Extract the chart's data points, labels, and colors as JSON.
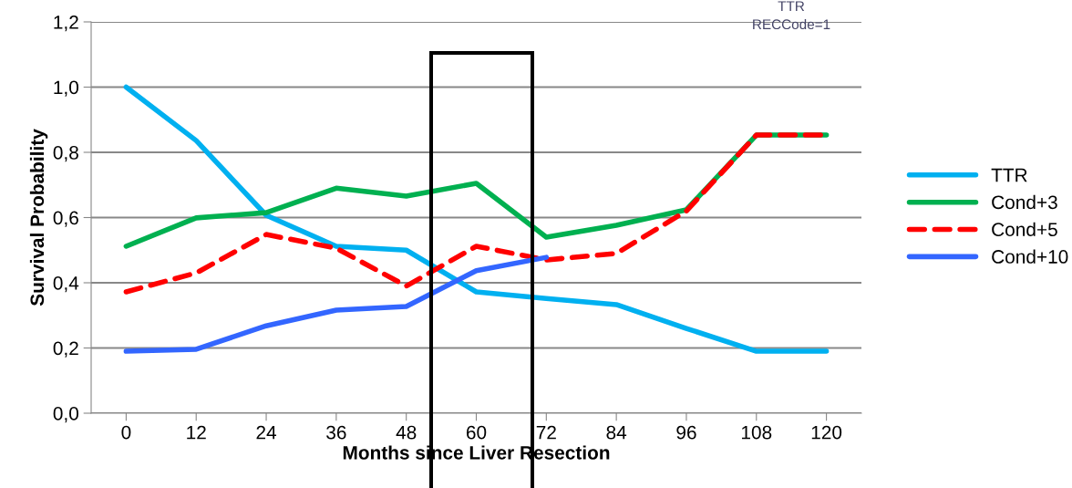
{
  "chart_data": {
    "type": "line",
    "xlabel": "Months since Liver Resection",
    "ylabel": "Survival Probability",
    "categories": [
      "0",
      "12",
      "24",
      "36",
      "48",
      "60",
      "72",
      "84",
      "96",
      "108",
      "120"
    ],
    "series": [
      {
        "name": "TTR",
        "color": "#00b0f0",
        "values": [
          1.0,
          0.836,
          0.607,
          0.512,
          0.5,
          0.372,
          0.352,
          0.333,
          0.26,
          0.19,
          0.19
        ]
      },
      {
        "name": "Cond+3",
        "color": "#00b050",
        "values": [
          0.512,
          0.599,
          0.615,
          0.69,
          0.666,
          0.705,
          0.54,
          0.576,
          0.624,
          0.853,
          0.853
        ]
      },
      {
        "name": "Cond+5",
        "color": "#ff0000",
        "line_style": "dashed",
        "values": [
          0.372,
          0.43,
          0.548,
          0.506,
          0.39,
          0.512,
          0.47,
          0.49,
          0.62,
          0.853,
          0.853
        ]
      },
      {
        "name": "Cond+10",
        "color": "#3366ff",
        "values": [
          0.19,
          0.196,
          0.268,
          0.316,
          0.327,
          0.437,
          0.478,
          null,
          null,
          null,
          null
        ]
      }
    ],
    "ylim": [
      0,
      1.2
    ],
    "yticks": [
      {
        "value": 0,
        "label": "0,0"
      },
      {
        "value": 0.2,
        "label": "0,2"
      },
      {
        "value": 0.4,
        "label": "0,4"
      },
      {
        "value": 0.6,
        "label": "0,6"
      },
      {
        "value": 0.8,
        "label": "0,8"
      },
      {
        "value": 1.0,
        "label": "1,0"
      },
      {
        "value": 1.2,
        "label": "1,2"
      }
    ],
    "grid": "y",
    "legend": "right",
    "marker": "none",
    "annotations": [
      "TTR",
      "RECCode=1"
    ]
  }
}
